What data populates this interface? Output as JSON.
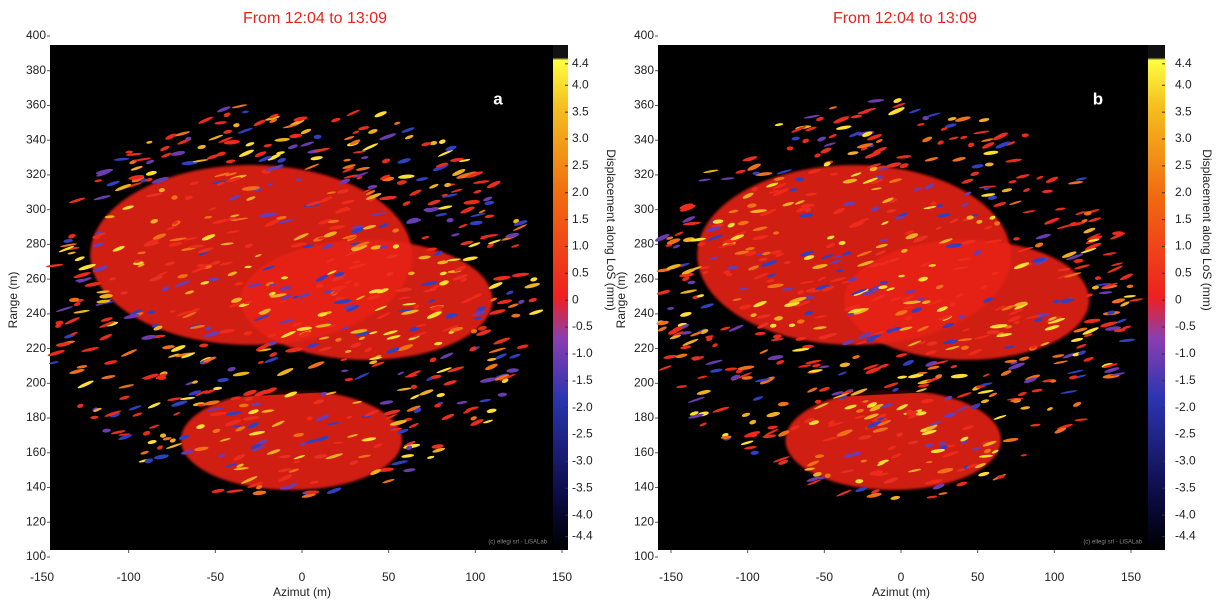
{
  "chart_data": [
    {
      "type": "displacement-map",
      "title": "From 12:04 to 13:09",
      "panel": "a",
      "xlabel": "Azimut (m)",
      "ylabel": "Range (m)",
      "xlim": [
        -150,
        150
      ],
      "xticks": [
        -150,
        -100,
        -50,
        0,
        50,
        100,
        150
      ],
      "ylim": [
        100,
        400
      ],
      "yticks": [
        100,
        120,
        140,
        160,
        180,
        200,
        220,
        240,
        260,
        280,
        300,
        320,
        340,
        360,
        380,
        400
      ],
      "watermark": "(c) ellegi srl - LiSALab",
      "colorbar": {
        "label": "Displacement along LoS (mm)",
        "clim": [
          -4.65,
          4.75
        ],
        "ticks": [
          4.4,
          {
            "value": 4,
            "label": "4.0"
          },
          3.5,
          {
            "value": 3,
            "label": "3.0"
          },
          2.5,
          {
            "value": 2,
            "label": "2.0"
          },
          1.5,
          {
            "value": 1,
            "label": "1.0"
          },
          0.5,
          0,
          -0.5,
          {
            "value": -1,
            "label": "-1.0"
          },
          -1.5,
          {
            "value": -2,
            "label": "-2.0"
          },
          -2.5,
          {
            "value": -3,
            "label": "-3.0"
          },
          -3.5,
          {
            "value": -4,
            "label": "-4.0"
          },
          -4.4
        ]
      }
    },
    {
      "type": "displacement-map",
      "title": "From 12:04 to 13:09",
      "panel": "b",
      "xlabel": "Azimut (m)",
      "ylabel": "Range (m)",
      "xlim": [
        -150,
        150
      ],
      "xticks": [
        -150,
        -100,
        -50,
        0,
        50,
        100,
        150
      ],
      "ylim": [
        100,
        400
      ],
      "yticks": [
        100,
        120,
        140,
        160,
        180,
        200,
        220,
        240,
        260,
        280,
        300,
        320,
        340,
        360,
        380,
        400
      ],
      "watermark": "(c) ellegi srl - LiSALab",
      "colorbar": {
        "label": "Displacement along LoS (mm)",
        "clim": [
          -4.65,
          4.75
        ],
        "ticks": [
          4.4,
          {
            "value": 4,
            "label": "4.0"
          },
          3.5,
          {
            "value": 3,
            "label": "3.0"
          },
          2.5,
          {
            "value": 2,
            "label": "2.0"
          },
          1.5,
          {
            "value": 1,
            "label": "1.0"
          },
          0.5,
          0,
          -0.5,
          {
            "value": -1,
            "label": "-1.0"
          },
          -1.5,
          {
            "value": -2,
            "label": "-2.0"
          },
          -2.5,
          {
            "value": -3,
            "label": "-3.0"
          },
          -3.5,
          {
            "value": -4,
            "label": "-4.0"
          },
          -4.4
        ]
      }
    }
  ]
}
